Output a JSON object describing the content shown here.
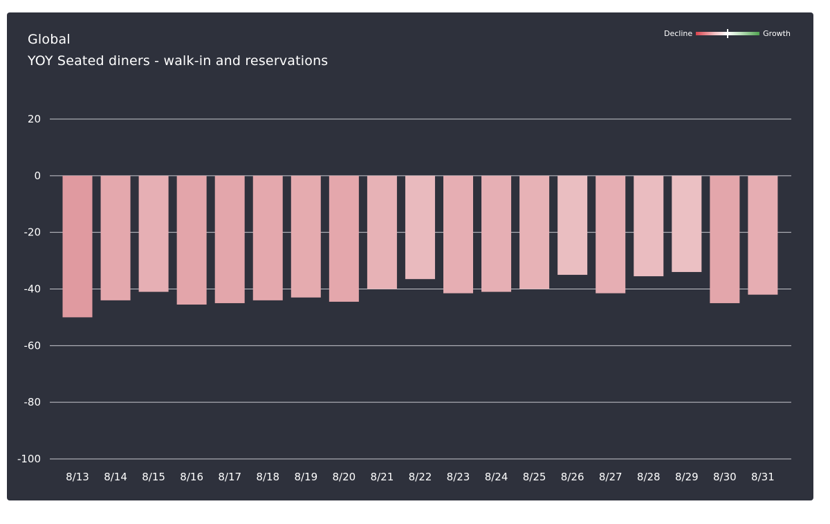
{
  "chart_data": {
    "type": "bar",
    "title": "Global",
    "subtitle": "YOY Seated diners - walk-in and reservations",
    "legend": {
      "low_label": "Decline",
      "high_label": "Growth",
      "placement": "top-right"
    },
    "categories": [
      "8/13",
      "8/14",
      "8/15",
      "8/16",
      "8/17",
      "8/18",
      "8/19",
      "8/20",
      "8/21",
      "8/22",
      "8/23",
      "8/24",
      "8/25",
      "8/26",
      "8/27",
      "8/28",
      "8/29",
      "8/30",
      "8/31"
    ],
    "values": [
      -50,
      -44,
      -41,
      -45.5,
      -45,
      -44,
      -43,
      -44.5,
      -40,
      -36.5,
      -41.5,
      -41,
      -40,
      -35,
      -41.5,
      -35.5,
      -34,
      -45,
      -42
    ],
    "ylim": [
      -100,
      20
    ],
    "yticks": [
      20,
      0,
      -20,
      -40,
      -60,
      -80,
      -100
    ],
    "grid": true,
    "colors": {
      "background": "#2e313c",
      "grid": "#c9cad0",
      "bar_min": "#e09aa0",
      "bar_max": "#ebc0c3"
    }
  }
}
